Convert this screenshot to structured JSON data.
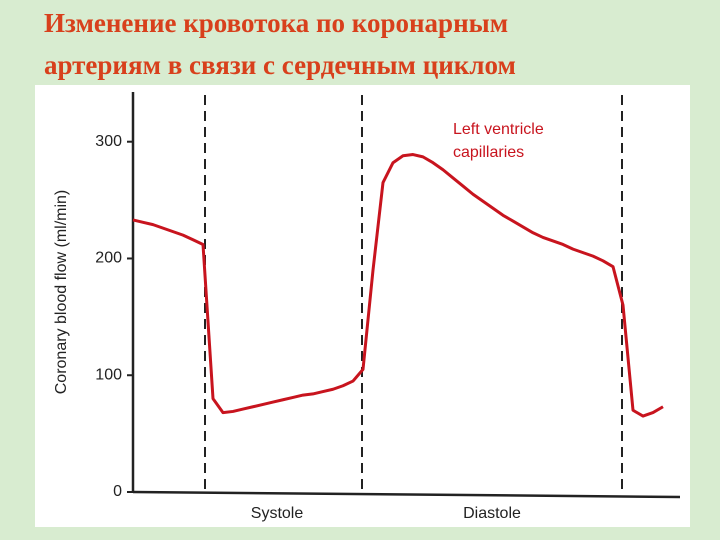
{
  "chart_data": {
    "type": "line",
    "title": [
      "Изменение кровотока по коронарным",
      "артериям в связи с сердечным циклом"
    ],
    "y_label": "Coronary blood flow (ml/min)",
    "annotation": [
      "Left ventricle",
      "capillaries"
    ],
    "phases": [
      "Systole",
      "Diastole"
    ],
    "categories": [
      null,
      null,
      null,
      null,
      null,
      null,
      null,
      null,
      null,
      null,
      null,
      null,
      null,
      null,
      null,
      null,
      null,
      null,
      null,
      null,
      null,
      null,
      null,
      null,
      null,
      null,
      null,
      null,
      null,
      null,
      null,
      null,
      null,
      null,
      null,
      null,
      null,
      null,
      null,
      null,
      null,
      null,
      null,
      null,
      null,
      null,
      null,
      null,
      null,
      null,
      null,
      null,
      null,
      null
    ],
    "values": [
      233,
      231,
      229,
      226,
      223,
      220,
      216,
      212,
      80,
      68,
      69,
      71,
      73,
      75,
      77,
      79,
      81,
      83,
      84,
      86,
      88,
      91,
      95,
      105,
      190,
      265,
      282,
      288,
      289,
      287,
      282,
      276,
      269,
      262,
      255,
      249,
      243,
      237,
      232,
      227,
      222,
      218,
      215,
      212,
      208,
      205,
      202,
      198,
      193,
      160,
      70,
      65,
      68,
      73
    ],
    "color": "#c8141e",
    "ylim": [
      0,
      340
    ],
    "yticks": [
      0,
      100,
      200,
      300
    ]
  }
}
